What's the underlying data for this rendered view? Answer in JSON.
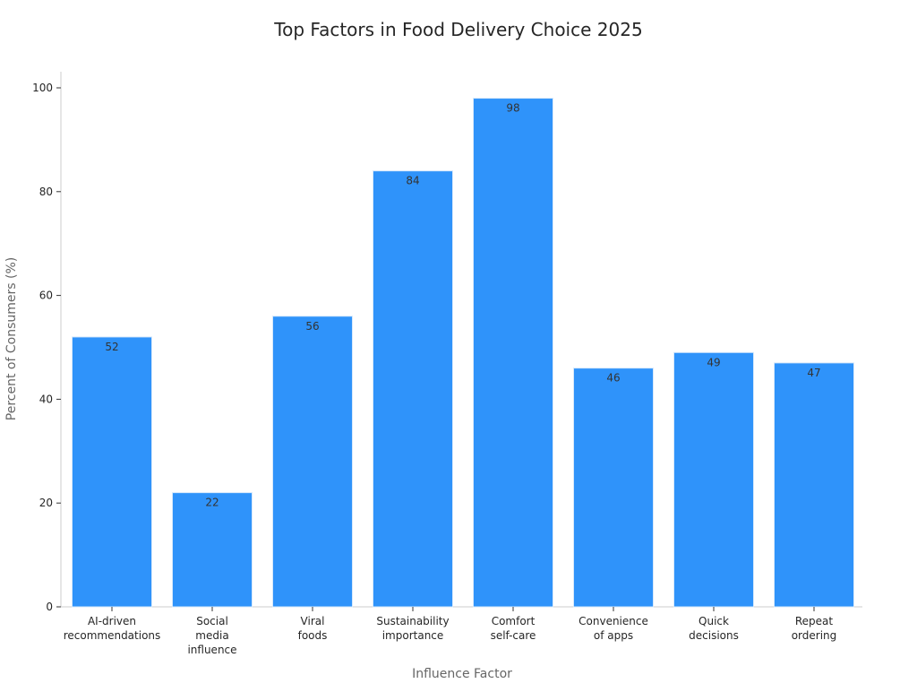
{
  "chart_data": {
    "type": "bar",
    "title": "Top Factors in Food Delivery Choice 2025",
    "xlabel": "Influence Factor",
    "ylabel": "Percent of Consumers (%)",
    "ylim": [
      0,
      100
    ],
    "yticks": [
      0,
      20,
      40,
      60,
      80,
      100
    ],
    "categories": [
      [
        "AI-driven",
        "recommendations"
      ],
      [
        "Social",
        "media",
        "influence"
      ],
      [
        "Viral",
        "foods"
      ],
      [
        "Sustainability",
        "importance"
      ],
      [
        "Comfort",
        "self-care"
      ],
      [
        "Convenience",
        "of apps"
      ],
      [
        "Quick",
        "decisions"
      ],
      [
        "Repeat",
        "ordering"
      ]
    ],
    "values": [
      52,
      22,
      56,
      84,
      98,
      46,
      49,
      47
    ],
    "bar_color": "#2f93fa",
    "grid": false,
    "legend": "none"
  }
}
